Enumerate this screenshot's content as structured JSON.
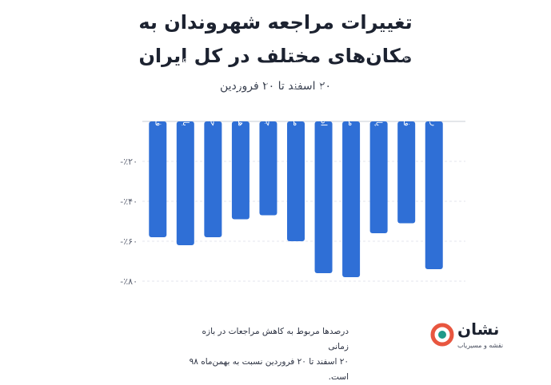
{
  "header": {
    "title_line1": "تغییرات مراجعه شهروندان به",
    "title_line2": "مکان‌های مختلف در کل ایران",
    "subtitle": "۲۰ اسفند تا ۲۰ فروردین"
  },
  "chart_data": {
    "type": "bar",
    "orientation": "vertical",
    "title": "تغییرات مراجعه شهروندان به مکان‌های مختلف در کل ایران",
    "subtitle": "۲۰ اسفند تا ۲۰ فروردین",
    "categories": [
      "فروشگاه‌ها",
      "بانک‌ها و خودپردازها",
      "حمل‌ونقل شهری",
      "هایپرمارکت‌ها",
      "جایگاه‌های سوخت",
      "مراکز خدمات درمانی",
      "ادارات و سازمان‌ها",
      "مساجد",
      "پارک‌ها",
      "فروشگاه‌های مواد غذایی",
      "رستوران و کافی‌شاپ‌ها"
    ],
    "values": [
      -58,
      -62,
      -58,
      -49,
      -47,
      -60,
      -76,
      -78,
      -56,
      -51,
      -74
    ],
    "ylim": [
      -84,
      0
    ],
    "y_ticks": [
      -20,
      -40,
      -60,
      -80
    ],
    "y_tick_labels": [
      "-٪۲۰",
      "-٪۴۰",
      "-٪۶۰",
      "-٪۸۰"
    ],
    "xlabel": "",
    "ylabel": "",
    "grid": true,
    "bar_color": "#2f6fd6"
  },
  "footnote": {
    "line1": "درصدها مربوط به کاهش مراجعات در بازه زمانی",
    "line2": "۲۰ اسفند تا ۲۰ فروردین نسبت به بهمن‌ماه ۹۸ است."
  },
  "brand": {
    "name": "نشان",
    "tagline": "نقشه و مسیریاب",
    "colors": {
      "ring": "#e8563f",
      "center": "#1f9a8a"
    }
  }
}
